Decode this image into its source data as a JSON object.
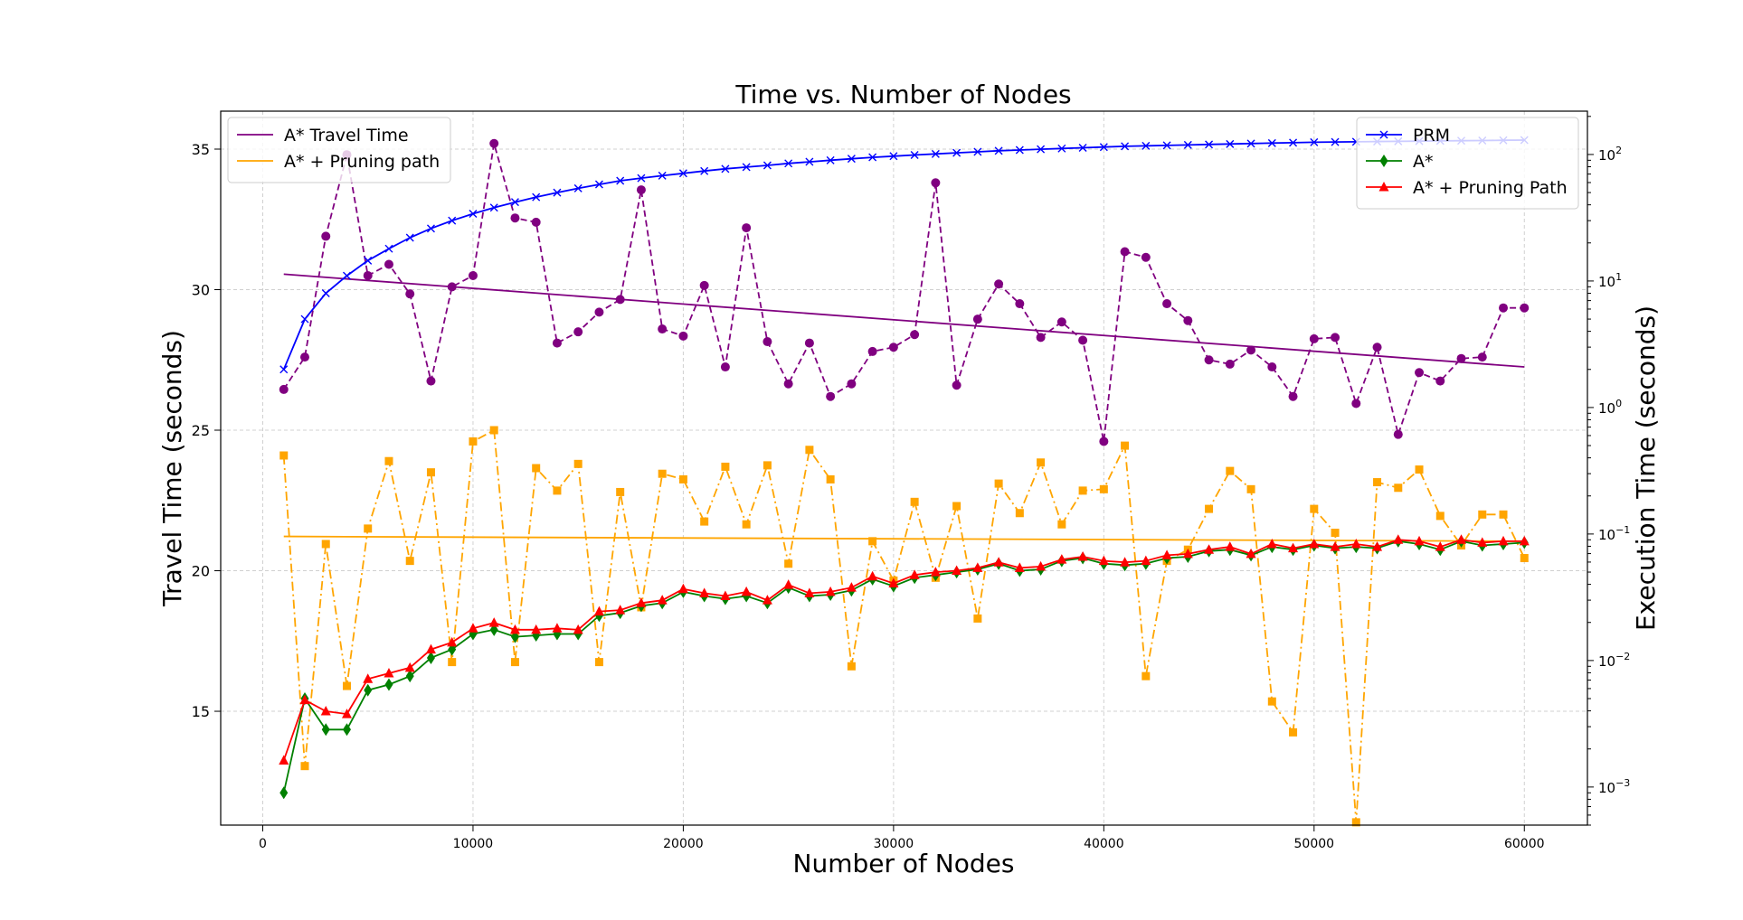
{
  "chart_data": {
    "type": "line",
    "title": "Time vs. Number of Nodes",
    "xlabel": "Number of Nodes",
    "ylabel": "Travel Time (seconds)",
    "y2label": "Execution Time (seconds)",
    "xlim": [
      -2000,
      63000
    ],
    "ylim": [
      10.95,
      36.35
    ],
    "y2lim": [
      0.0005,
      220
    ],
    "y2scale": "log",
    "grid": true,
    "xticks": [
      0,
      10000,
      20000,
      30000,
      40000,
      50000,
      60000
    ],
    "xtick_labels": [
      "0",
      "10000",
      "20000",
      "30000",
      "40000",
      "50000",
      "60000"
    ],
    "yticks": [
      15,
      20,
      25,
      30,
      35
    ],
    "ytick_labels": [
      "15",
      "20",
      "25",
      "30",
      "35"
    ],
    "y2ticks": [
      0.001,
      0.01,
      0.1,
      1,
      10,
      100
    ],
    "y2tick_labels": [
      {
        "base": "10",
        "exp": "−3"
      },
      {
        "base": "10",
        "exp": "−2"
      },
      {
        "base": "10",
        "exp": "−1"
      },
      {
        "base": "10",
        "exp": "0"
      },
      {
        "base": "10",
        "exp": "1"
      },
      {
        "base": "10",
        "exp": "2"
      }
    ],
    "x": [
      1000,
      2000,
      3000,
      4000,
      5000,
      6000,
      7000,
      8000,
      9000,
      10000,
      11000,
      12000,
      13000,
      14000,
      15000,
      16000,
      17000,
      18000,
      19000,
      20000,
      21000,
      22000,
      23000,
      24000,
      25000,
      26000,
      27000,
      28000,
      29000,
      30000,
      31000,
      32000,
      33000,
      34000,
      35000,
      36000,
      37000,
      38000,
      39000,
      40000,
      41000,
      42000,
      43000,
      44000,
      45000,
      46000,
      47000,
      48000,
      49000,
      50000,
      51000,
      52000,
      53000,
      54000,
      55000,
      56000,
      57000,
      58000,
      59000,
      60000
    ],
    "left_series": [
      {
        "name": "A* Travel Time",
        "color": "#800080",
        "style": "trend-solid",
        "start": 30.55,
        "end": 27.25
      },
      {
        "name": "",
        "color": "#800080",
        "style": "dashed",
        "marker": "circle",
        "values": [
          26.45,
          27.6,
          31.9,
          34.8,
          30.5,
          30.9,
          29.85,
          26.75,
          30.1,
          30.5,
          35.2,
          32.55,
          32.4,
          28.1,
          28.5,
          29.2,
          29.65,
          33.55,
          28.6,
          28.35,
          30.15,
          27.25,
          32.2,
          28.15,
          26.65,
          28.1,
          26.2,
          26.65,
          27.8,
          27.95,
          28.4,
          33.8,
          26.6,
          28.95,
          30.2,
          29.5,
          28.3,
          28.85,
          28.2,
          24.6,
          31.35,
          31.15,
          29.5,
          28.9,
          27.5,
          27.35,
          27.85,
          27.25,
          26.2,
          28.25,
          28.3,
          25.95,
          27.95,
          24.85,
          27.05,
          26.75,
          27.55,
          27.6,
          29.35,
          29.35
        ]
      },
      {
        "name": "A* + Pruning path",
        "color": "#ffa500",
        "style": "trend-solid",
        "start": 21.22,
        "end": 21.05
      },
      {
        "name": "",
        "color": "#ffa500",
        "style": "dashdot",
        "marker": "square",
        "values": [
          24.1,
          13.05,
          20.95,
          15.9,
          21.5,
          23.9,
          20.35,
          23.5,
          16.75,
          24.6,
          25.0,
          16.75,
          23.65,
          22.85,
          23.8,
          16.75,
          22.8,
          18.7,
          23.45,
          23.25,
          21.75,
          23.7,
          21.65,
          23.75,
          20.25,
          24.3,
          23.25,
          16.6,
          21.05,
          19.65,
          22.45,
          19.75,
          22.3,
          18.3,
          23.1,
          22.05,
          23.85,
          21.65,
          22.85,
          22.9,
          24.45,
          16.25,
          20.35,
          20.75,
          22.2,
          23.55,
          22.9,
          15.35,
          14.25,
          22.2,
          21.35,
          11.05,
          23.15,
          22.95,
          23.6,
          21.95,
          20.9,
          22.0,
          22.0,
          20.45
        ]
      }
    ],
    "right_series": [
      {
        "name": "PRM",
        "color": "#0000ff",
        "marker": "x",
        "values": [
          2.0,
          5.0,
          8.0,
          11.0,
          14.5,
          18.0,
          22.0,
          26.0,
          30.0,
          34.0,
          38.0,
          42.0,
          46.0,
          50.0,
          54.0,
          58.0,
          62.0,
          65.0,
          68.0,
          71.0,
          74.0,
          77.0,
          79.5,
          82.0,
          85.0,
          87.5,
          90.0,
          92.5,
          95.0,
          97.0,
          99.0,
          101.0,
          103.0,
          105.0,
          107.0,
          108.5,
          110.0,
          111.5,
          113.0,
          114.5,
          116.0,
          117.0,
          118.0,
          119.0,
          120.0,
          121.0,
          122.0,
          123.0,
          124.0,
          125.0,
          125.5,
          126.0,
          126.5,
          127.0,
          127.5,
          128.0,
          128.5,
          129.0,
          129.5,
          130.0
        ]
      }
    ],
    "right_series_on_left_axis": [
      {
        "name": "A*",
        "color": "#008000",
        "marker": "diamond",
        "values": [
          12.1,
          15.45,
          14.35,
          14.35,
          15.75,
          15.95,
          16.25,
          16.9,
          17.2,
          17.75,
          17.9,
          17.65,
          17.7,
          17.75,
          17.75,
          18.4,
          18.5,
          18.75,
          18.85,
          19.25,
          19.1,
          19.0,
          19.1,
          18.85,
          19.4,
          19.1,
          19.15,
          19.3,
          19.7,
          19.45,
          19.75,
          19.85,
          19.95,
          20.05,
          20.25,
          20.0,
          20.05,
          20.35,
          20.45,
          20.25,
          20.2,
          20.25,
          20.45,
          20.5,
          20.7,
          20.75,
          20.55,
          20.85,
          20.75,
          20.9,
          20.8,
          20.85,
          20.8,
          21.05,
          20.95,
          20.75,
          21.05,
          20.9,
          20.95,
          21.0
        ]
      },
      {
        "name": "A* + Pruning Path",
        "color": "#ff0000",
        "marker": "triangle",
        "values": [
          13.25,
          15.4,
          15.0,
          14.9,
          16.15,
          16.35,
          16.55,
          17.2,
          17.45,
          17.95,
          18.15,
          17.9,
          17.9,
          17.95,
          17.9,
          18.55,
          18.6,
          18.85,
          18.95,
          19.35,
          19.2,
          19.1,
          19.25,
          18.95,
          19.5,
          19.2,
          19.25,
          19.4,
          19.8,
          19.55,
          19.85,
          19.95,
          20.0,
          20.1,
          20.3,
          20.1,
          20.15,
          20.4,
          20.5,
          20.35,
          20.3,
          20.35,
          20.55,
          20.6,
          20.75,
          20.85,
          20.6,
          20.95,
          20.8,
          20.95,
          20.85,
          20.95,
          20.85,
          21.1,
          21.05,
          20.85,
          21.1,
          21.0,
          21.05,
          21.05
        ]
      }
    ],
    "legend_left": [
      "A* Travel Time",
      "A* + Pruning path"
    ],
    "legend_right": [
      "PRM",
      "A*",
      "A* + Pruning Path"
    ],
    "legend_left_placement": "top-left",
    "legend_right_placement": "top-right"
  }
}
